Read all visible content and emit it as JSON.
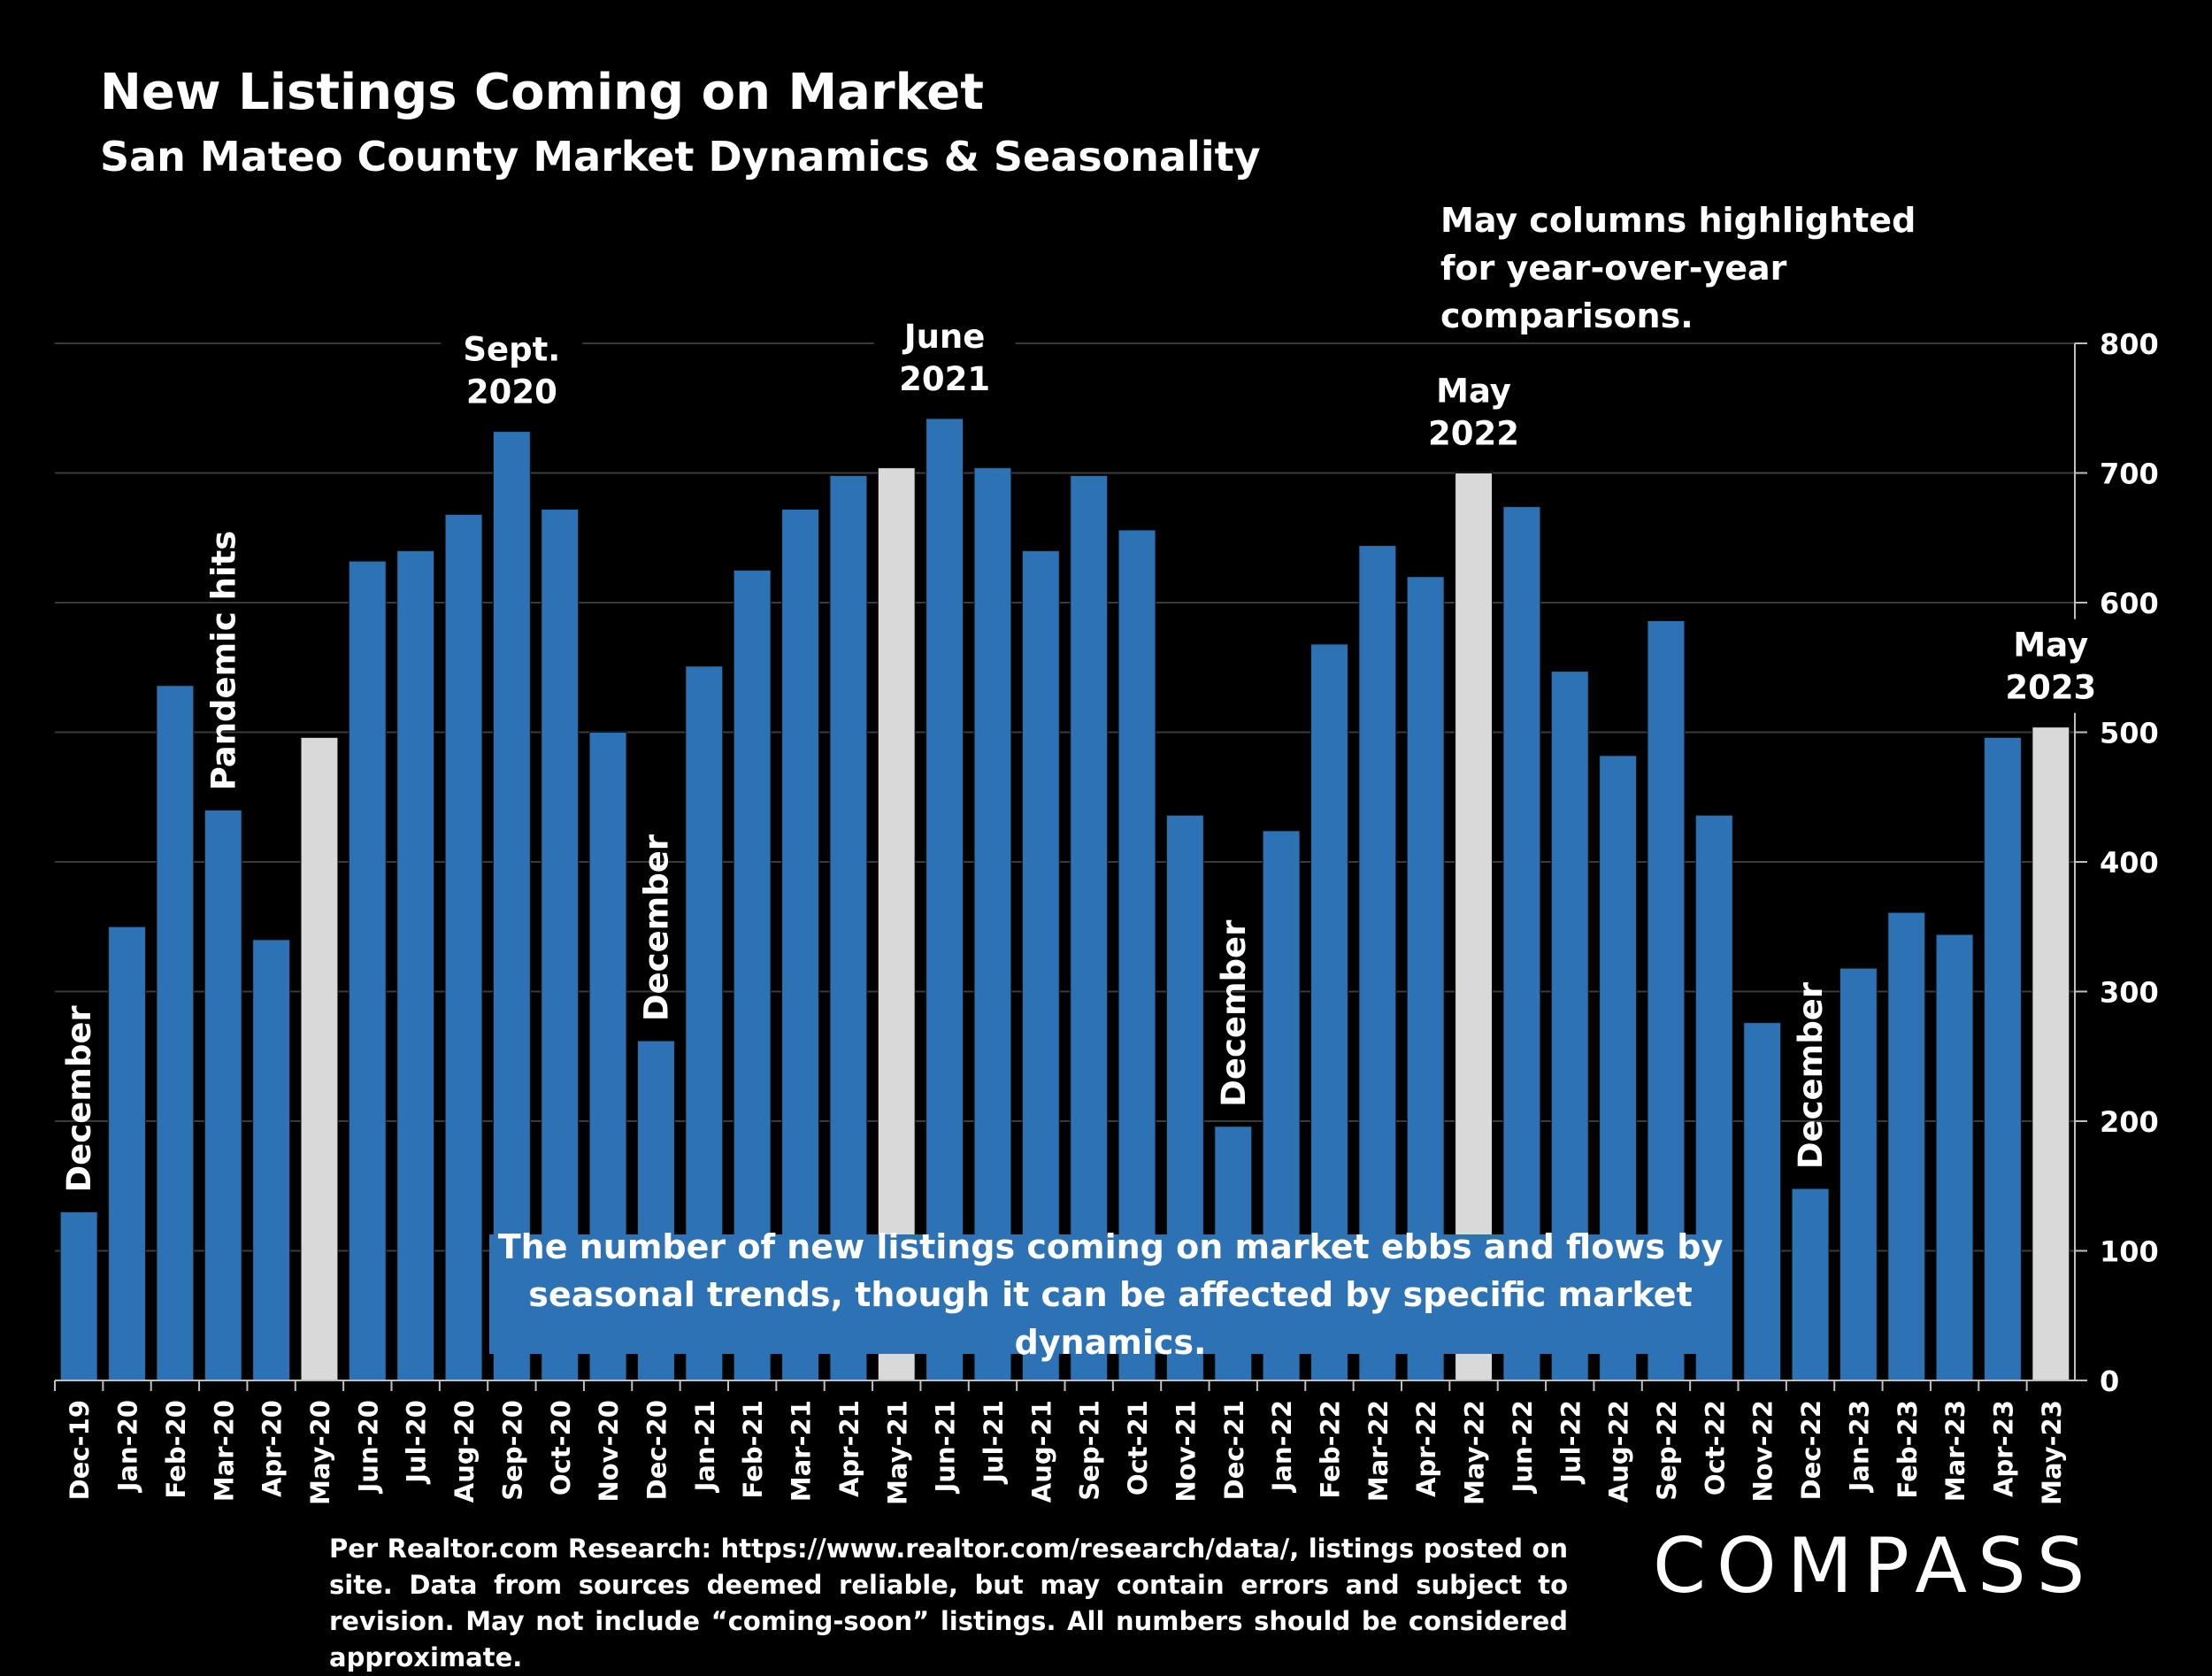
{
  "header": {
    "title": "New Listings Coming on Market",
    "subtitle": "San Mateo County Market Dynamics & Seasonality"
  },
  "note": "May columns highlighted for year-over-year comparisons.",
  "callout": "The number of new listings coming on market ebbs and flows by seasonal trends, though it can be affected by specific market dynamics.",
  "footer": "Per Realtor.com Research: https://www.realtor.com/research/data/, listings posted on site. Data from sources deemed reliable, but may contain errors and subject to revision. May not include “coming-soon” listings. All numbers should be considered approximate.",
  "logo": "COMPASS",
  "colors": {
    "bar": "#2e72b6",
    "highlight": "#d9d9d9",
    "background": "#000000",
    "grid": "#3a3a3a"
  },
  "chart_data": {
    "type": "bar",
    "title": "New Listings Coming on Market",
    "subtitle": "San Mateo County Market Dynamics & Seasonality",
    "categories": [
      "Dec-19",
      "Jan-20",
      "Feb-20",
      "Mar-20",
      "Apr-20",
      "May-20",
      "Jun-20",
      "Jul-20",
      "Aug-20",
      "Sep-20",
      "Oct-20",
      "Nov-20",
      "Dec-20",
      "Jan-21",
      "Feb-21",
      "Mar-21",
      "Apr-21",
      "May-21",
      "Jun-21",
      "Jul-21",
      "Aug-21",
      "Sep-21",
      "Oct-21",
      "Nov-21",
      "Dec-21",
      "Jan-22",
      "Feb-22",
      "Mar-22",
      "Apr-22",
      "May-22",
      "Jun-22",
      "Jul-22",
      "Aug-22",
      "Sep-22",
      "Oct-22",
      "Nov-22",
      "Dec-22",
      "Jan-23",
      "Feb-23",
      "Mar-23",
      "Apr-23",
      "May-23"
    ],
    "values": [
      130,
      350,
      536,
      440,
      340,
      496,
      632,
      640,
      668,
      732,
      672,
      500,
      262,
      551,
      625,
      672,
      698,
      704,
      742,
      704,
      640,
      698,
      656,
      436,
      196,
      424,
      568,
      644,
      620,
      700,
      674,
      547,
      482,
      586,
      436,
      276,
      148,
      318,
      361,
      344,
      496,
      504
    ],
    "highlighted": [
      "May-20",
      "May-21",
      "May-22",
      "May-23"
    ],
    "ylim": [
      0,
      800
    ],
    "yticks": [
      0,
      100,
      200,
      300,
      400,
      500,
      600,
      700,
      800
    ],
    "y_axis_side": "right",
    "grid": true,
    "annotations": [
      {
        "text": "December",
        "category": "Dec-19",
        "rotated": true
      },
      {
        "text": "Pandemic hits",
        "category": "Mar-20",
        "rotated": true
      },
      {
        "text": "Sept. 2020",
        "category": "Sep-20",
        "rotated": false
      },
      {
        "text": "December",
        "category": "Dec-20",
        "rotated": true
      },
      {
        "text": "June 2021",
        "category": "Jun-21",
        "rotated": false
      },
      {
        "text": "December",
        "category": "Dec-21",
        "rotated": true
      },
      {
        "text": "May 2022",
        "category": "May-22",
        "rotated": false
      },
      {
        "text": "December",
        "category": "Dec-22",
        "rotated": true
      },
      {
        "text": "May 2023",
        "category": "May-23",
        "rotated": false
      }
    ]
  }
}
